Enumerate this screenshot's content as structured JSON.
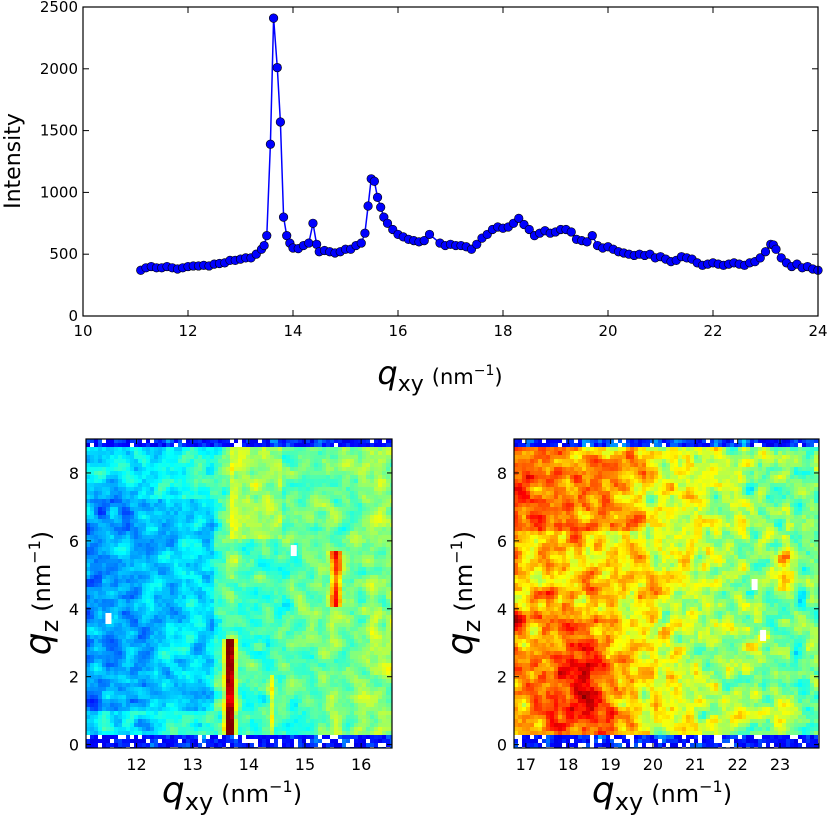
{
  "chart_data": [
    {
      "type": "line",
      "marker": "circle",
      "color": "#0000ff",
      "ylabel": "Intensity",
      "xlabel": {
        "symbol": "q",
        "sub": "xy",
        "unit": "(nm",
        "sup": "−1",
        "close": ")"
      },
      "xlim": [
        10,
        24
      ],
      "ylim": [
        0,
        2500
      ],
      "xticks": [
        10,
        12,
        14,
        16,
        18,
        20,
        22,
        24
      ],
      "yticks": [
        0,
        500,
        1000,
        1500,
        2000,
        2500
      ],
      "grid": false,
      "x": [
        11.1,
        11.2,
        11.3,
        11.4,
        11.5,
        11.6,
        11.7,
        11.8,
        11.9,
        12.0,
        12.1,
        12.2,
        12.3,
        12.4,
        12.5,
        12.6,
        12.7,
        12.8,
        12.9,
        13.0,
        13.1,
        13.2,
        13.3,
        13.4,
        13.45,
        13.5,
        13.57,
        13.63,
        13.7,
        13.76,
        13.82,
        13.88,
        13.94,
        14.0,
        14.1,
        14.2,
        14.3,
        14.38,
        14.45,
        14.5,
        14.6,
        14.7,
        14.8,
        14.9,
        15.0,
        15.1,
        15.2,
        15.3,
        15.37,
        15.43,
        15.49,
        15.55,
        15.61,
        15.67,
        15.73,
        15.8,
        15.9,
        16.0,
        16.1,
        16.2,
        16.3,
        16.4,
        16.5,
        16.6,
        16.8,
        16.9,
        17.0,
        17.1,
        17.2,
        17.3,
        17.4,
        17.5,
        17.6,
        17.7,
        17.8,
        17.9,
        18.0,
        18.1,
        18.2,
        18.3,
        18.4,
        18.5,
        18.6,
        18.7,
        18.8,
        18.9,
        19.0,
        19.1,
        19.2,
        19.3,
        19.4,
        19.5,
        19.6,
        19.7,
        19.8,
        19.9,
        20.0,
        20.1,
        20.2,
        20.3,
        20.4,
        20.5,
        20.6,
        20.7,
        20.8,
        20.9,
        21.0,
        21.1,
        21.2,
        21.3,
        21.4,
        21.5,
        21.6,
        21.7,
        21.8,
        21.9,
        22.0,
        22.1,
        22.2,
        22.3,
        22.4,
        22.5,
        22.6,
        22.7,
        22.8,
        22.9,
        23.0,
        23.1,
        23.15,
        23.2,
        23.3,
        23.4,
        23.5,
        23.6,
        23.7,
        23.8,
        23.9,
        24.0
      ],
      "y": [
        370,
        390,
        400,
        390,
        390,
        400,
        390,
        380,
        390,
        400,
        405,
        405,
        410,
        405,
        420,
        425,
        430,
        450,
        450,
        460,
        470,
        470,
        500,
        540,
        570,
        650,
        1390,
        2410,
        2010,
        1570,
        800,
        650,
        590,
        550,
        545,
        570,
        590,
        750,
        580,
        520,
        530,
        520,
        510,
        520,
        540,
        540,
        570,
        590,
        670,
        890,
        1110,
        1090,
        960,
        880,
        800,
        750,
        700,
        660,
        640,
        620,
        610,
        600,
        610,
        660,
        590,
        570,
        580,
        570,
        570,
        560,
        540,
        580,
        630,
        660,
        700,
        720,
        710,
        720,
        750,
        790,
        740,
        700,
        650,
        670,
        690,
        670,
        680,
        700,
        700,
        680,
        620,
        610,
        600,
        650,
        570,
        550,
        560,
        540,
        520,
        510,
        500,
        490,
        500,
        490,
        500,
        470,
        480,
        460,
        440,
        450,
        480,
        470,
        460,
        430,
        410,
        420,
        430,
        420,
        410,
        420,
        430,
        420,
        410,
        430,
        440,
        470,
        520,
        580,
        575,
        540,
        470,
        430,
        400,
        420,
        390,
        400,
        380,
        370
      ]
    },
    {
      "type": "heatmap",
      "colormap": "jet",
      "xlabel": {
        "symbol": "q",
        "sub": "xy",
        "unit": "(nm",
        "sup": "−1",
        "close": ")"
      },
      "ylabel": {
        "symbol": "q",
        "sub": "z",
        "unit": "(nm",
        "sup": "−1",
        "close": ")"
      },
      "xlim": [
        11.1,
        16.55
      ],
      "ylim": [
        -0.1,
        9.0
      ],
      "xticks": [
        12,
        13,
        14,
        15,
        16
      ],
      "yticks": [
        0,
        2,
        4,
        6,
        8
      ],
      "hot_spots": [
        {
          "qxy": 13.65,
          "qz_range": [
            0.3,
            3.0
          ],
          "level": "high"
        },
        {
          "qxy": 15.55,
          "qz_range": [
            4.2,
            5.6
          ],
          "level": "medium-high"
        },
        {
          "qxy": 14.4,
          "qz_range": [
            0.3,
            2.0
          ],
          "level": "medium"
        }
      ]
    },
    {
      "type": "heatmap",
      "colormap": "jet",
      "xlabel": {
        "symbol": "q",
        "sub": "xy",
        "unit": "(nm",
        "sup": "−1",
        "close": ")"
      },
      "ylabel": {
        "symbol": "q",
        "sub": "z",
        "unit": "(nm",
        "sup": "−1",
        "close": ")"
      },
      "xlim": [
        16.72,
        23.92
      ],
      "ylim": [
        -0.1,
        9.0
      ],
      "xticks": [
        17,
        18,
        19,
        20,
        21,
        22,
        23
      ],
      "yticks": [
        0,
        2,
        4,
        6,
        8
      ],
      "hot_spots": [
        {
          "qxy": 18.4,
          "qz_range": [
            0.4,
            3.5
          ],
          "level": "high"
        },
        {
          "qxy": 17.8,
          "qz_range": [
            6.5,
            8.8
          ],
          "level": "medium-high"
        },
        {
          "qxy": 23.1,
          "qz_range": [
            4.5,
            6.0
          ],
          "level": "medium-high"
        }
      ]
    }
  ]
}
